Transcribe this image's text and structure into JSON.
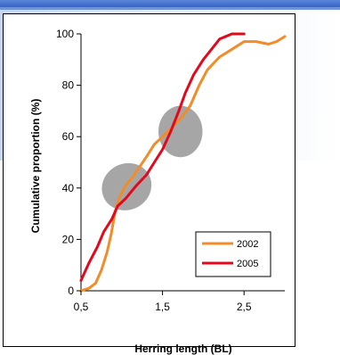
{
  "colors": {
    "series_2002": "#f28c28",
    "series_2005": "#e3081b",
    "ellipse_fill": "#a6a6a6",
    "slide_band": "#3f6fd0"
  },
  "chart_data": {
    "type": "line",
    "title": "",
    "xlabel": "Herring length (BL)",
    "ylabel": "Cumulative proportion (%)",
    "xlim": [
      0.5,
      3.0
    ],
    "ylim": [
      0,
      100
    ],
    "xticks": [
      0.5,
      1.5,
      2.5
    ],
    "xtick_labels": [
      "0,5",
      "1,5",
      "2,5"
    ],
    "yticks": [
      0,
      20,
      40,
      60,
      80,
      100
    ],
    "ytick_labels": [
      "0",
      "20",
      "40",
      "60",
      "80",
      "100"
    ],
    "grid": false,
    "legend_position": "bottom-right",
    "series": [
      {
        "name": "2002",
        "color": "#f28c28",
        "points": [
          [
            0.5,
            0
          ],
          [
            0.6,
            1
          ],
          [
            0.68,
            3
          ],
          [
            0.75,
            8
          ],
          [
            0.82,
            15
          ],
          [
            0.87,
            22
          ],
          [
            0.92,
            31
          ],
          [
            0.98,
            37
          ],
          [
            1.05,
            41
          ],
          [
            1.15,
            45
          ],
          [
            1.3,
            52
          ],
          [
            1.4,
            57
          ],
          [
            1.5,
            60
          ],
          [
            1.6,
            63
          ],
          [
            1.72,
            67
          ],
          [
            1.84,
            72
          ],
          [
            1.95,
            80
          ],
          [
            2.05,
            86
          ],
          [
            2.2,
            91
          ],
          [
            2.35,
            94
          ],
          [
            2.5,
            97
          ],
          [
            2.65,
            97
          ],
          [
            2.8,
            96
          ],
          [
            2.9,
            97
          ],
          [
            3.0,
            99
          ]
        ]
      },
      {
        "name": "2005",
        "color": "#e3081b",
        "points": [
          [
            0.5,
            4
          ],
          [
            0.6,
            11
          ],
          [
            0.7,
            17
          ],
          [
            0.78,
            23
          ],
          [
            0.88,
            28
          ],
          [
            0.95,
            33
          ],
          [
            1.05,
            36
          ],
          [
            1.18,
            41
          ],
          [
            1.3,
            45
          ],
          [
            1.4,
            50
          ],
          [
            1.5,
            55
          ],
          [
            1.6,
            62
          ],
          [
            1.7,
            70
          ],
          [
            1.78,
            77
          ],
          [
            1.88,
            84
          ],
          [
            2.0,
            90
          ],
          [
            2.1,
            94
          ],
          [
            2.2,
            98
          ],
          [
            2.35,
            100
          ],
          [
            2.5,
            100
          ]
        ]
      }
    ],
    "annotations": [
      {
        "shape": "ellipse",
        "cx": 1.06,
        "cy": 40.5,
        "rx": 0.31,
        "ry": 9,
        "rotation_deg": -28
      },
      {
        "shape": "ellipse",
        "cx": 1.72,
        "cy": 62,
        "rx": 0.27,
        "ry": 10,
        "rotation_deg": 0
      }
    ]
  }
}
